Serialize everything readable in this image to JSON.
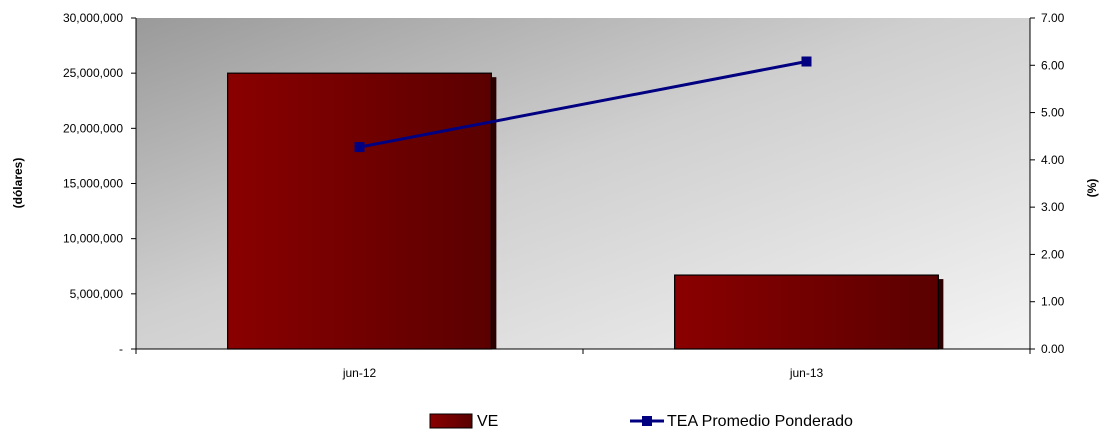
{
  "chart_data": {
    "type": "bar",
    "categories": [
      "jun-12",
      "jun-13"
    ],
    "series": [
      {
        "name": "VE",
        "type": "bar",
        "axis": "left",
        "values": [
          25000000,
          6700000
        ],
        "color": "#7a0000"
      },
      {
        "name": "TEA Promedio Ponderado",
        "type": "line",
        "axis": "right",
        "values": [
          4.27,
          6.08
        ],
        "color": "#000080"
      }
    ],
    "ylabel_left": "(dólares)",
    "ylabel_right": "(%)",
    "ylim_left": [
      0,
      30000000
    ],
    "ylim_right": [
      0,
      7
    ],
    "left_ticks": [
      "-",
      "5,000,000",
      "10,000,000",
      "15,000,000",
      "20,000,000",
      "25,000,000",
      "30,000,000"
    ],
    "right_ticks": [
      "0.00",
      "1.00",
      "2.00",
      "3.00",
      "4.00",
      "5.00",
      "6.00",
      "7.00"
    ],
    "legend_position": "bottom",
    "grid": false
  }
}
